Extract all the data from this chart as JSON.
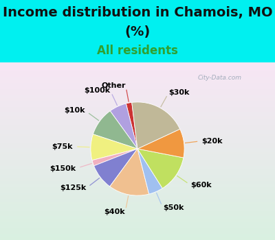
{
  "title1": "Income distribution in Chamois, MO",
  "title2": "(%)",
  "subtitle": "All residents",
  "labels": [
    "Other",
    "$100k",
    "$10k",
    "$75k",
    "$150k",
    "$125k",
    "$40k",
    "$50k",
    "$60k",
    "$20k",
    "$30k"
  ],
  "values": [
    2,
    6,
    10,
    9,
    2,
    9,
    14,
    5,
    13,
    10,
    20
  ],
  "colors": [
    "#cc3333",
    "#b0a0e0",
    "#90b890",
    "#f0f080",
    "#f0b0c0",
    "#8080d0",
    "#f0c090",
    "#a0c0f0",
    "#c0e060",
    "#f09840",
    "#c0b898"
  ],
  "background_color": "#00f0f0",
  "chart_bg_top": "#d0f0e0",
  "chart_bg_bot": "#c0e8f8",
  "startangle": 97,
  "title_fontsize": 14,
  "subtitle_fontsize": 12,
  "subtitle_color": "#30a030",
  "label_fontsize": 8,
  "watermark": "City-Data.com"
}
